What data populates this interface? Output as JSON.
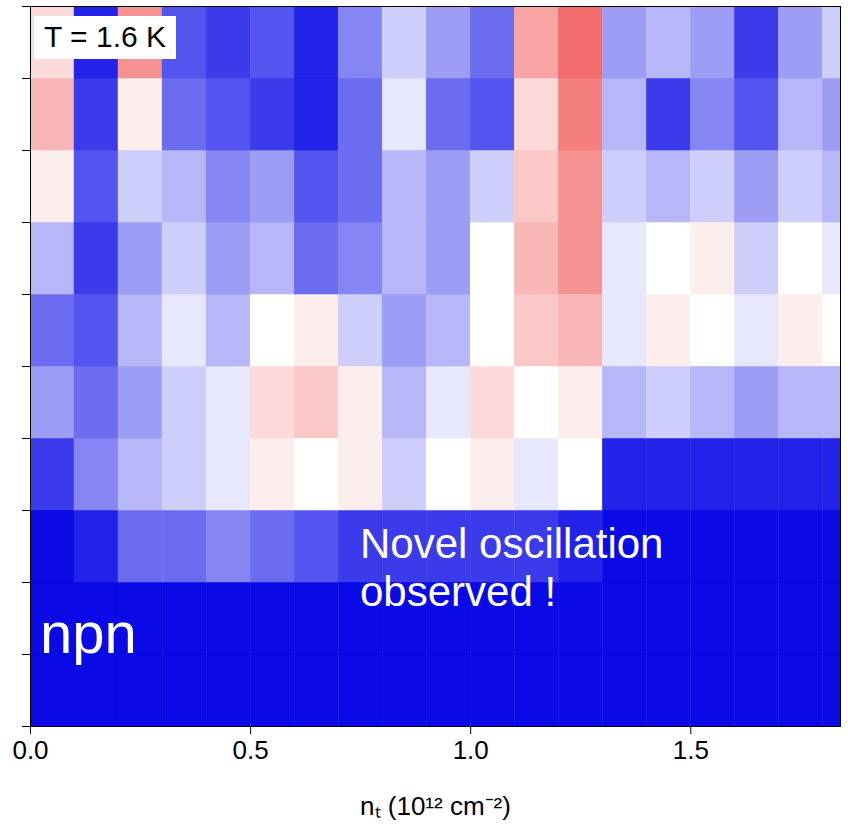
{
  "chart_data": {
    "type": "heatmap",
    "x_label": "nₜ (10¹² cm⁻²)",
    "xlim": [
      0,
      1.84
    ],
    "xticks": [
      {
        "value": 0,
        "label": "0.0"
      },
      {
        "value": 0.5,
        "label": "0.5"
      },
      {
        "value": 1,
        "label": "1.0"
      },
      {
        "value": 1.5,
        "label": "1.5"
      }
    ],
    "ylim": [
      0,
      10
    ],
    "yticks": [
      0,
      1,
      2,
      3,
      4,
      5,
      6,
      7,
      8,
      9,
      10
    ],
    "tick_labels": "x",
    "annotations": [
      "T = 1.6 K",
      "Novel oscillation observed !",
      "npn"
    ],
    "x_bins": [
      0,
      0.1,
      0.2,
      0.3,
      0.4,
      0.5,
      0.6,
      0.7,
      0.8,
      0.9,
      1.0,
      1.1,
      1.2,
      1.3,
      1.4,
      1.5,
      1.6,
      1.7,
      1.8,
      1.9
    ],
    "y_bins": [
      0,
      1,
      2,
      3,
      4,
      5,
      6,
      7,
      8,
      9,
      10
    ],
    "cells": [
      [
        -1,
        -1,
        -1,
        -1,
        -1,
        -1,
        -1,
        -1,
        -1,
        -1,
        -1,
        -1,
        -1,
        -1,
        -1,
        -1,
        -1,
        -1,
        -1
      ],
      [
        -1,
        -1,
        -1,
        -1,
        -1,
        -1,
        -1,
        -1,
        -1,
        -1,
        -1,
        -1,
        -1,
        -1,
        -1,
        -1,
        -1,
        -1,
        -1
      ],
      [
        -1,
        -0.9,
        -0.6,
        -0.6,
        -0.5,
        -0.6,
        -0.7,
        -0.8,
        -0.8,
        -0.8,
        -0.8,
        -0.8,
        -0.9,
        -1,
        -1,
        -1,
        -1,
        -1,
        -1
      ],
      [
        -0.8,
        -0.5,
        -0.3,
        -0.2,
        -0.1,
        0.1,
        0,
        0.1,
        -0.2,
        0,
        0.1,
        -0.1,
        0,
        -0.9,
        -0.9,
        -0.9,
        -0.9,
        -0.9,
        -0.9
      ],
      [
        -0.4,
        -0.6,
        -0.4,
        -0.2,
        -0.1,
        0.2,
        0.3,
        0.1,
        -0.3,
        -0.1,
        0.2,
        0,
        0.1,
        -0.3,
        -0.2,
        -0.3,
        -0.4,
        -0.3,
        -0.3
      ],
      [
        -0.6,
        -0.7,
        -0.3,
        -0.1,
        -0.3,
        0,
        0.1,
        -0.2,
        -0.4,
        -0.3,
        0,
        0.3,
        0.4,
        -0.1,
        0.1,
        0,
        -0.1,
        0.1,
        0
      ],
      [
        -0.3,
        -0.8,
        -0.4,
        -0.2,
        -0.4,
        -0.3,
        -0.6,
        -0.5,
        -0.3,
        -0.4,
        0,
        0.4,
        0.6,
        -0.1,
        0,
        0.1,
        -0.2,
        0,
        -0.1
      ],
      [
        0.1,
        -0.7,
        -0.2,
        -0.3,
        -0.5,
        -0.4,
        -0.7,
        -0.6,
        -0.3,
        -0.4,
        -0.2,
        0.3,
        0.6,
        -0.2,
        -0.3,
        -0.2,
        -0.4,
        -0.2,
        -0.3
      ],
      [
        0.4,
        -0.8,
        0.1,
        -0.6,
        -0.7,
        -0.8,
        -0.9,
        -0.6,
        -0.1,
        -0.6,
        -0.7,
        0.2,
        0.7,
        -0.3,
        -0.8,
        -0.5,
        -0.7,
        -0.3,
        -0.4
      ],
      [
        0.2,
        -0.9,
        0.6,
        -0.7,
        -0.8,
        -0.7,
        -0.9,
        -0.5,
        -0.2,
        -0.4,
        -0.6,
        0.5,
        0.8,
        -0.4,
        -0.3,
        -0.4,
        -0.8,
        -0.4,
        -0.2
      ]
    ],
    "color_range": [
      -1,
      1
    ]
  }
}
